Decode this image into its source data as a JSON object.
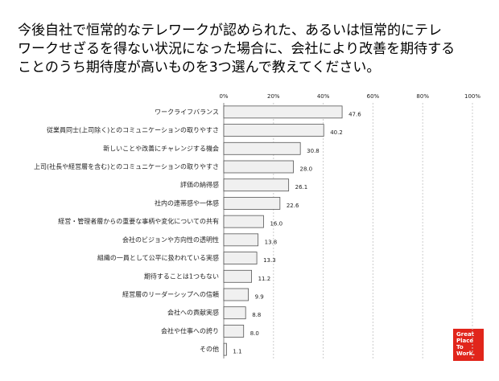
{
  "title_lines": [
    "今後自社で恒常的なテレワークが認められた、あるいは恒常的にテレ",
    "ワークせざるを得ない状況になった場合に、会社により改善を期待する",
    "ことのうち期待度が高いものを3つ選んで教えてください。"
  ],
  "logo_lines": [
    "Great",
    "Place",
    "To",
    "Work."
  ],
  "chart_data": {
    "type": "hbar",
    "categories": [
      "ワークライフバランス",
      "従業員同士(上司除く)とのコミュニケーションの取りやすさ",
      "新しいことや改善にチャレンジする機会",
      "上司(社長や経営層を含む)とのコミュニケーションの取りやすさ",
      "評価の納得感",
      "社内の連帯感や一体感",
      "経営・管理者層からの重要な事柄や変化についての共有",
      "会社のビジョンや方向性の透明性",
      "組織の一員として公平に扱われている実感",
      "期待することは1つもない",
      "経営層のリーダーシップへの信頼",
      "会社への貢献実感",
      "会社や仕事への誇り",
      "その他"
    ],
    "values": [
      47.6,
      40.2,
      30.8,
      28.0,
      26.1,
      22.6,
      16.0,
      13.8,
      13.3,
      11.2,
      9.9,
      8.8,
      8.0,
      1.1
    ],
    "value_labels": [
      "47.6",
      "40.2",
      "30.8",
      "28.0",
      "26.1",
      "22.6",
      "16.0",
      "13.8",
      "13.3",
      "11.2",
      "9.9",
      "8.8",
      "8.0",
      "1.1"
    ],
    "color": "#f0f0f0",
    "xlim": [
      0,
      100
    ],
    "xticks": [
      {
        "value": 0,
        "label": "0%"
      },
      {
        "value": 20,
        "label": "20%"
      },
      {
        "value": 40,
        "label": "40%"
      },
      {
        "value": 60,
        "label": "60%"
      },
      {
        "value": 80,
        "label": "80%"
      },
      {
        "value": 100,
        "label": "100%"
      }
    ],
    "grid": true
  }
}
